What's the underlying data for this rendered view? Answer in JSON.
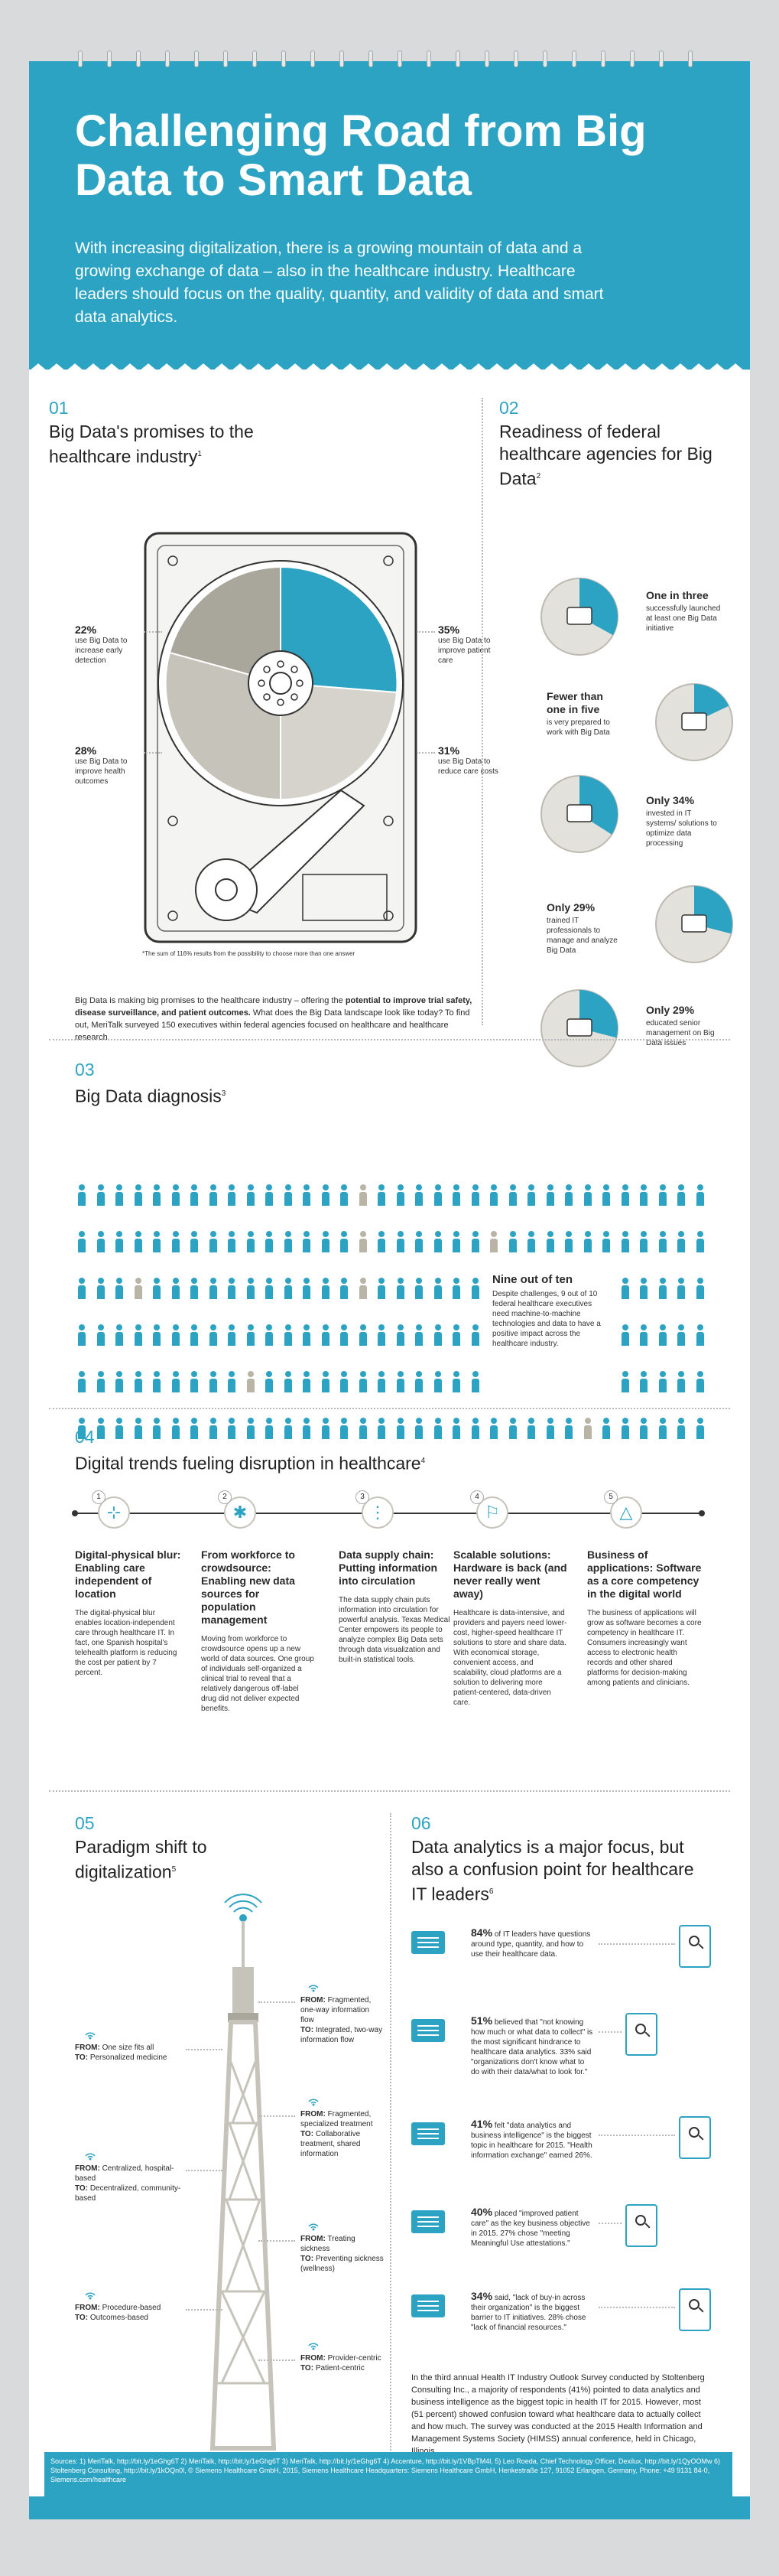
{
  "header": {
    "title": "Challenging Road from Big Data to Smart Data",
    "intro": "With increasing digitalization, there is a growing mountain of data and a growing exchange of data – also in the healthcare industry. Healthcare leaders should focus on the quality, quantity, and validity of data and smart data analytics."
  },
  "s01": {
    "num": "01",
    "title": "Big Data's promises to the healthcare industry",
    "sup": "1",
    "slices": [
      {
        "value": "22%",
        "text": "use Big Data to increase early detection"
      },
      {
        "value": "28%",
        "text": "use Big Data to improve health outcomes"
      },
      {
        "value": "35%",
        "text": "use Big Data to improve patient care"
      },
      {
        "value": "31%",
        "text": "use Big Data to reduce care costs"
      }
    ],
    "footnote": "*The sum of 116% results from the possibility to choose more than one answer",
    "body_a": "Big Data is making big promises to the healthcare industry – offering the ",
    "body_b": "potential to improve trial safety, disease surveillance, and patient outcomes.",
    "body_c": " What does the Big Data landscape look like today? To find out, MeriTalk surveyed 150 executives within federal agencies focused on healthcare and healthcare research."
  },
  "s02": {
    "num": "02",
    "title": "Readiness of federal healthcare agencies for Big Data",
    "sup": "2",
    "items": [
      {
        "head": "One in three",
        "text": "successfully launched at least one Big Data initiative"
      },
      {
        "head": "Fewer than one in five",
        "text": "is very prepared to work with Big Data"
      },
      {
        "head": "Only 34%",
        "text": "invested in IT systems/ solutions to optimize data processing"
      },
      {
        "head": "Only 29%",
        "text": "trained IT professionals to manage and analyze Big Data"
      },
      {
        "head": "Only 29%",
        "text": "educated senior management on Big Data issues"
      }
    ]
  },
  "s03": {
    "num": "03",
    "title": "Big Data diagnosis",
    "sup": "3",
    "stat_head": "Nine out of ten",
    "stat_text": "Despite challenges, 9 out of 10 federal healthcare executives need machine-to-machine technologies and data to have a positive impact across the healthcare industry."
  },
  "s04": {
    "num": "04",
    "title": "Digital trends fueling disruption in healthcare",
    "sup": "4",
    "trends": [
      {
        "n": "1",
        "head": "Digital-physical blur: Enabling care independent of location",
        "text": "The digital-physical blur enables location-independent care through healthcare IT. In fact, one Spanish hospital's telehealth platform is reducing the cost per patient by 7 percent."
      },
      {
        "n": "2",
        "head": "From workforce to crowdsource: Enabling new data sources for population management",
        "text": "Moving from workforce to crowdsource opens up a new world of data sources. One group of individuals self-organized a clinical trial to reveal that a relatively dangerous off-label drug did not deliver expected benefits."
      },
      {
        "n": "3",
        "head": "Data supply chain: Putting information into circulation",
        "text": "The data supply chain puts information into circulation for powerful analysis. Texas Medical Center empowers its people to analyze complex Big Data sets through data visualization and built-in statistical tools."
      },
      {
        "n": "4",
        "head": "Scalable solutions: Hardware is back (and never really went away)",
        "text": "Healthcare is data-intensive, and providers and payers need lower-cost, higher-speed healthcare IT solutions to store and share data. With economical storage, convenient access, and scalability, cloud platforms are a solution to delivering more patient-centered, data-driven care."
      },
      {
        "n": "5",
        "head": "Business of applications: Software as a core competency in the digital world",
        "text": "The business of applications will grow as software becomes a core competency in healthcare IT. Consumers increasingly want access to electronic health records and other shared platforms for decision-making among patients and clinicians."
      }
    ]
  },
  "s05": {
    "num": "05",
    "title": "Paradigm shift to digitalization",
    "sup": "5",
    "left": [
      {
        "from": "One size fits all",
        "to": "Personalized medicine"
      },
      {
        "from": "Centralized, hospital-based",
        "to": "Decentralized, community-based"
      },
      {
        "from": "Procedure-based",
        "to": "Outcomes-based"
      }
    ],
    "right": [
      {
        "from": "Fragmented, one-way information flow",
        "to": "Integrated, two-way information flow"
      },
      {
        "from": "Fragmented, specialized treatment",
        "to": "Collaborative treatment, shared information"
      },
      {
        "from": "Treating sickness",
        "to": "Preventing sickness (wellness)"
      },
      {
        "from": "Provider-centric",
        "to": "Patient-centric"
      }
    ],
    "from_label": "FROM:",
    "to_label": "TO:"
  },
  "s06": {
    "num": "06",
    "title": "Data analytics is a major focus, but also a confusion point for healthcare IT leaders",
    "sup": "6",
    "items": [
      {
        "pct": "84%",
        "text": "of IT leaders have questions around type, quantity, and how to use their healthcare data."
      },
      {
        "pct": "51%",
        "text": "believed that \"not knowing how much or what data to collect\" is the most significant hindrance to healthcare data analytics. 33% said \"organizations don't know what to do with their data/what to look for.\""
      },
      {
        "pct": "41%",
        "text": "felt \"data analytics and business intelligence\" is the biggest topic in healthcare for 2015. \"Health information exchange\" earned 26%."
      },
      {
        "pct": "40%",
        "text": "placed \"improved patient care\" as the key business objective in 2015. 27% chose \"meeting Meaningful Use attestations.\""
      },
      {
        "pct": "34%",
        "text": "said, \"lack of buy-in across their organization\" is the biggest barrier to IT initiatives. 28% chose \"lack of financial resources.\""
      }
    ],
    "body": "In the third annual Health IT Industry Outlook Survey conducted by Stoltenberg Consulting Inc., a majority of respondents (41%) pointed to data analytics and business intelligence as the biggest topic in health IT for 2015. However, most (51 percent) showed confusion toward what healthcare data to actually collect and how much. The survey was conducted at the 2015 Health Information and Management Systems Society (HIMSS) annual conference, held in Chicago, Illinois."
  },
  "footer": {
    "sources": "Sources: 1) MeriTalk, http://bit.ly/1eGhg6T 2) MeriTalk, http://bit.ly/1eGhg6T 3) MeriTalk, http://bit.ly/1eGhg6T 4) Accenture, http://bit.ly/1VBpTM4l, 5) Leo Roeda, Chief Technology Officer, Dexilux, http://bit.ly/1QyOOMw 6) Stoltenberg Consulting, http://bit.ly/1kOQn0l, © Siemens Healthcare GmbH, 2015, Siemens Healthcare Headquarters: Siemens Healthcare GmbH, Henkestraße 127, 91052 Erlangen, Germany, Phone: +49 9131 84-0, Siemens.com/healthcare"
  },
  "colors": {
    "accent": "#2da3c3",
    "grey": "#c9c6bd",
    "dark": "#222222"
  }
}
